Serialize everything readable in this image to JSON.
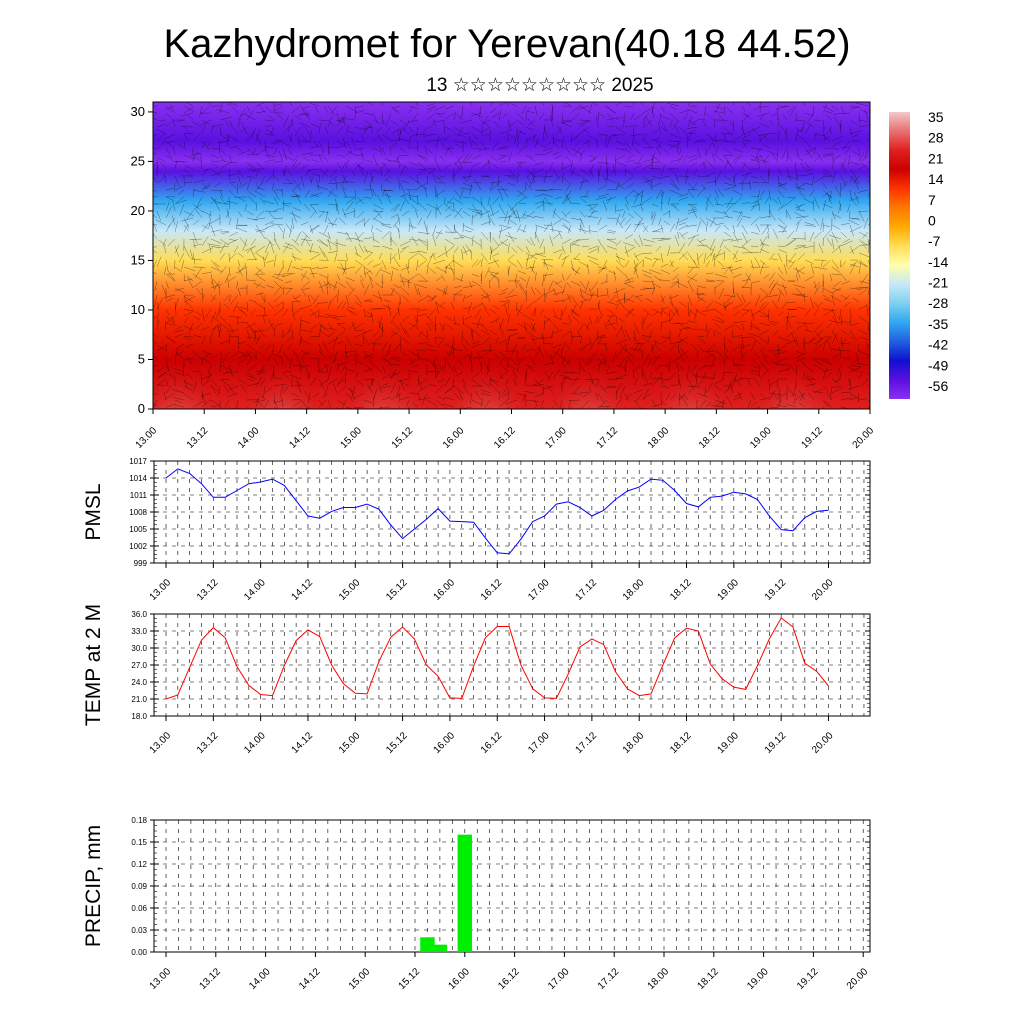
{
  "page": {
    "title": "Kazhydromet for Yerevan(40.18 44.52)",
    "subtitle": "13 ☆☆☆☆☆☆☆☆☆ 2025"
  },
  "colors": {
    "pmsl_line": "#0000ff",
    "temp_line": "#ff0000",
    "precip_bar": "#00ee00",
    "grid": "#000000",
    "colorbar_scale": [
      "#f4c9c9",
      "#e87070",
      "#e02020",
      "#cc0000",
      "#ff3300",
      "#ff7700",
      "#ffaa00",
      "#ffdd55",
      "#ffffaa",
      "#c8e8f8",
      "#7ed0f0",
      "#30a8f0",
      "#2060e0",
      "#1010d0",
      "#5a10e0",
      "#8a30f0"
    ]
  },
  "x_tick_labels": [
    "13.00",
    "13.12",
    "14.00",
    "14.12",
    "15.00",
    "15.12",
    "16.00",
    "16.12",
    "17.00",
    "17.12",
    "18.00",
    "18.12",
    "19.00",
    "19.12",
    "20.00"
  ],
  "chart_data": [
    {
      "type": "heatmap",
      "title": "",
      "xlabel": "",
      "ylabel": "",
      "x_ticks": [
        "13.00",
        "13.12",
        "14.00",
        "14.12",
        "15.00",
        "15.12",
        "16.00",
        "16.12",
        "17.00",
        "17.12",
        "18.00",
        "18.12",
        "19.00",
        "19.12",
        "20.00"
      ],
      "y_ticks": [
        0,
        5,
        10,
        15,
        20,
        25,
        30
      ],
      "ylim": [
        0,
        31
      ],
      "colorbar_labels": [
        "35",
        "28",
        "21",
        "14",
        "7",
        "0",
        "-7",
        "-14",
        "-21",
        "-28",
        "-35",
        "-42",
        "-49",
        "-56"
      ],
      "colorbar_range": [
        -60,
        40
      ],
      "temperature_profile": [
        {
          "level": 0,
          "value": 30
        },
        {
          "level": 5,
          "value": 22
        },
        {
          "level": 10,
          "value": 12
        },
        {
          "level": 15,
          "value": -7
        },
        {
          "level": 18,
          "value": -17
        },
        {
          "level": 21,
          "value": -30
        },
        {
          "level": 24,
          "value": -50
        },
        {
          "level": 25,
          "value": -58
        },
        {
          "level": 27,
          "value": -56
        },
        {
          "level": 31,
          "value": -57
        }
      ],
      "overlay": "wind barbs"
    },
    {
      "type": "line",
      "ylabel": "PMSL",
      "ylim": [
        999,
        1017
      ],
      "y_ticks": [
        "999",
        "1002",
        "1005",
        "1008",
        "1011",
        "1014",
        "1017"
      ],
      "x_ticks": [
        "13.00",
        "13.12",
        "14.00",
        "14.12",
        "15.00",
        "15.12",
        "16.00",
        "16.12",
        "17.00",
        "17.12",
        "18.00",
        "18.12",
        "19.00",
        "19.12",
        "20.00"
      ],
      "x_step_hours": 3,
      "series": [
        {
          "values": [
            1014,
            1015.6,
            1014.8,
            1013,
            1010.6,
            1010.6,
            1011.8,
            1013,
            1013.3,
            1013.8,
            1012.7,
            1010,
            1007.3,
            1006.9,
            1008.1,
            1008.8,
            1008.8,
            1009.4,
            1008.5,
            1005.7,
            1003.3,
            1005,
            1006.7,
            1008.6,
            1006.4,
            1006.3,
            1006.2,
            1003.4,
            1000.8,
            1000.6,
            1003.2,
            1006.3,
            1007.3,
            1009.4,
            1009.8,
            1008.8,
            1007.3,
            1008.3,
            1010.2,
            1011.7,
            1012.4,
            1013.8,
            1013.6,
            1011.8,
            1009.5,
            1008.9,
            1010.6,
            1010.8,
            1011.5,
            1011.2,
            1010.2,
            1007.3,
            1004.9,
            1004.7,
            1007,
            1008.1,
            1008.3
          ]
        }
      ]
    },
    {
      "type": "line",
      "ylabel": "TEMP at 2 M",
      "ylim": [
        18,
        36
      ],
      "y_ticks": [
        "18.0",
        "21.0",
        "24.0",
        "27.0",
        "30.0",
        "33.0",
        "36.0"
      ],
      "x_ticks": [
        "13.00",
        "13.12",
        "14.00",
        "14.12",
        "15.00",
        "15.12",
        "16.00",
        "16.12",
        "17.00",
        "17.12",
        "18.00",
        "18.12",
        "19.00",
        "19.12",
        "20.00"
      ],
      "x_step_hours": 3,
      "series": [
        {
          "values": [
            21.0,
            21.7,
            26.6,
            31.4,
            33.6,
            31.8,
            26.7,
            23.4,
            21.8,
            21.6,
            26.9,
            31.3,
            33.2,
            32.0,
            27.0,
            23.7,
            22.0,
            21.9,
            27.6,
            31.9,
            33.7,
            31.6,
            27.0,
            25.0,
            21.2,
            21.1,
            26.8,
            31.8,
            33.8,
            33.8,
            27.0,
            22.8,
            21.2,
            21.1,
            25.4,
            30.2,
            31.6,
            30.6,
            25.8,
            22.8,
            21.6,
            21.9,
            27.0,
            31.8,
            33.5,
            33.0,
            27.2,
            24.6,
            23.1,
            22.7,
            26.9,
            31.6,
            35.3,
            33.7,
            27.3,
            25.9,
            23.3
          ]
        }
      ]
    },
    {
      "type": "bar",
      "ylabel": "PRECIP, mm",
      "ylim": [
        0,
        0.18
      ],
      "y_ticks": [
        "0.00",
        "0.03",
        "0.06",
        "0.09",
        "0.12",
        "0.15",
        "0.18"
      ],
      "x_ticks": [
        "13.00",
        "13.12",
        "14.00",
        "14.12",
        "15.00",
        "15.12",
        "16.00",
        "16.12",
        "17.00",
        "17.12",
        "18.00",
        "18.12",
        "19.00",
        "19.12",
        "20.00"
      ],
      "x_step_hours": 3,
      "values": [
        0,
        0,
        0,
        0,
        0,
        0,
        0,
        0,
        0,
        0,
        0,
        0,
        0,
        0,
        0,
        0,
        0,
        0,
        0,
        0,
        0,
        0.02,
        0.01,
        0,
        0.16,
        0,
        0,
        0,
        0,
        0,
        0,
        0,
        0,
        0,
        0,
        0,
        0,
        0,
        0,
        0,
        0,
        0,
        0,
        0,
        0,
        0,
        0,
        0,
        0,
        0,
        0,
        0,
        0,
        0,
        0,
        0,
        0
      ]
    }
  ]
}
